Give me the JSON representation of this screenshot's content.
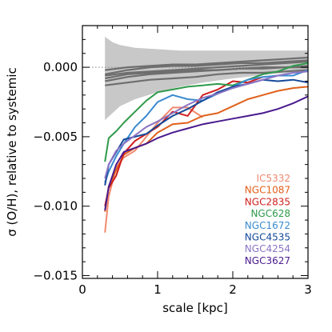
{
  "chart_data": {
    "type": "line",
    "title": "",
    "xlabel": "scale [kpc]",
    "ylabel": "σ (O/H), relative to systemic",
    "xlim": [
      0,
      3
    ],
    "ylim": [
      -0.0152,
      0.003
    ],
    "x_ticks": [
      0,
      1,
      2,
      3
    ],
    "x_tick_labels": [
      "0",
      "1",
      "2",
      "3"
    ],
    "y_ticks": [
      0.0,
      -0.005,
      -0.01,
      -0.015
    ],
    "y_tick_labels": [
      "0.000",
      "−0.005",
      "−0.010",
      "−0.015"
    ],
    "grid": false,
    "legend_position": "bottom-right",
    "zero_line": {
      "y": 0,
      "style": "dotted",
      "color": "#888888"
    },
    "band": {
      "color": "#c8c8c8",
      "x": [
        0.3,
        0.4,
        0.5,
        0.7,
        1.0,
        1.3,
        1.6,
        2.0,
        2.5,
        3.0
      ],
      "upper": [
        0.0022,
        0.0018,
        0.0016,
        0.0014,
        0.0013,
        0.0012,
        0.0012,
        0.0012,
        0.0012,
        0.0012
      ],
      "lower": [
        -0.0038,
        -0.0033,
        -0.0028,
        -0.0023,
        -0.0018,
        -0.0014,
        -0.0011,
        -0.0008,
        -0.0005,
        -0.0003
      ]
    },
    "null_series_color": "#6e6e6e",
    "null_series": [
      {
        "x": [
          0.3,
          0.6,
          0.9,
          1.2,
          1.5,
          1.8,
          2.1,
          2.4,
          2.7,
          3.0
        ],
        "values": [
          -0.0002,
          0.0,
          0.0001,
          0.0002,
          0.0002,
          0.0003,
          0.0004,
          0.0005,
          0.0006,
          0.0007
        ]
      },
      {
        "x": [
          0.3,
          0.6,
          0.9,
          1.2,
          1.5,
          1.8,
          2.1,
          2.4,
          2.7,
          3.0
        ],
        "values": [
          -0.0006,
          -0.0004,
          -0.0003,
          -0.0002,
          -0.0001,
          0.0,
          0.0001,
          0.0002,
          0.0003,
          0.0004
        ]
      },
      {
        "x": [
          0.3,
          0.6,
          0.9,
          1.2,
          1.5,
          1.8,
          2.1,
          2.4,
          2.7,
          3.0
        ],
        "values": [
          -0.001,
          -0.0007,
          -0.0005,
          -0.0004,
          -0.0003,
          -0.0002,
          -0.0001,
          0.0,
          0.0,
          0.0001
        ]
      },
      {
        "x": [
          0.3,
          0.6,
          0.9,
          1.2,
          1.5,
          1.8,
          2.1,
          2.4,
          2.7,
          3.0
        ],
        "values": [
          -0.0013,
          -0.0011,
          -0.0009,
          -0.0008,
          -0.0007,
          -0.0005,
          -0.0004,
          -0.0004,
          -0.0003,
          -0.0002
        ]
      },
      {
        "x": [
          0.3,
          0.6,
          0.9,
          1.2,
          1.5,
          1.8,
          2.1,
          2.4,
          2.7,
          3.0
        ],
        "values": [
          -0.0005,
          -0.0002,
          0.0,
          0.0001,
          0.0001,
          0.0002,
          0.0003,
          0.0003,
          0.0004,
          0.0005
        ]
      },
      {
        "x": [
          0.3,
          0.6,
          0.9,
          1.2,
          1.5,
          1.8,
          2.1,
          2.4,
          2.7,
          3.0
        ],
        "values": [
          -0.0008,
          -0.0005,
          -0.0004,
          -0.0003,
          -0.0002,
          -0.0002,
          -0.0001,
          -0.0001,
          0.0,
          0.0
        ]
      }
    ],
    "series": [
      {
        "name": "IC5332",
        "color": "#f08a6e",
        "x": [
          0.3,
          0.35,
          0.45,
          0.55,
          0.7,
          0.85,
          1.0,
          1.2,
          1.4,
          1.6
        ],
        "values": [
          -0.0119,
          -0.0093,
          -0.0072,
          -0.0065,
          -0.006,
          -0.005,
          -0.004,
          -0.0029,
          -0.0029,
          -0.0036
        ]
      },
      {
        "name": "NGC1087",
        "color": "#e0601a",
        "x": [
          0.3,
          0.35,
          0.45,
          0.55,
          0.7,
          0.85,
          1.0,
          1.2,
          1.4,
          1.6,
          1.8,
          2.0,
          2.2,
          2.4,
          2.6,
          2.8,
          3.0
        ],
        "values": [
          -0.0104,
          -0.0086,
          -0.0074,
          -0.0063,
          -0.0058,
          -0.0055,
          -0.0047,
          -0.0041,
          -0.004,
          -0.0035,
          -0.0033,
          -0.0028,
          -0.0023,
          -0.002,
          -0.0017,
          -0.0015,
          -0.0014
        ]
      },
      {
        "name": "NGC2835",
        "color": "#d0201e",
        "x": [
          0.3,
          0.35,
          0.45,
          0.55,
          0.7,
          0.85,
          1.0,
          1.2,
          1.4,
          1.6,
          1.8,
          2.0,
          2.2,
          2.4
        ],
        "values": [
          -0.01,
          -0.0087,
          -0.0078,
          -0.0062,
          -0.0053,
          -0.0048,
          -0.0043,
          -0.0032,
          -0.0035,
          -0.002,
          -0.0016,
          -0.001,
          -0.0011,
          -0.0007
        ]
      },
      {
        "name": "NGC628",
        "color": "#2e9a4a",
        "x": [
          0.3,
          0.35,
          0.45,
          0.55,
          0.7,
          0.85,
          1.0,
          1.2,
          1.4,
          1.6,
          1.8,
          2.0,
          2.2,
          2.4,
          2.6,
          2.8,
          3.0
        ],
        "values": [
          -0.0068,
          -0.0051,
          -0.0046,
          -0.004,
          -0.0032,
          -0.0024,
          -0.0018,
          -0.0016,
          -0.0014,
          -0.0013,
          -0.0012,
          -0.0013,
          -0.0009,
          -0.0005,
          -0.0003,
          0.0001,
          0.0003
        ]
      },
      {
        "name": "NGC1672",
        "color": "#3a8ad0",
        "x": [
          0.3,
          0.35,
          0.45,
          0.55,
          0.7,
          0.85,
          1.0,
          1.2,
          1.4,
          1.6,
          1.8,
          2.0,
          2.2,
          2.4,
          2.6,
          2.8,
          3.0
        ],
        "values": [
          -0.0083,
          -0.0075,
          -0.0064,
          -0.0055,
          -0.0043,
          -0.0035,
          -0.0025,
          -0.002,
          -0.0023,
          -0.0024,
          -0.0019,
          -0.0014,
          -0.0009,
          -0.0007,
          -0.0006,
          -0.0006,
          -0.0002
        ]
      },
      {
        "name": "NGC4535",
        "color": "#154a9a",
        "x": [
          0.3,
          0.35,
          0.45,
          0.55,
          0.7,
          0.85,
          1.0,
          1.2,
          1.4,
          1.6,
          1.8,
          2.0,
          2.2,
          2.4,
          2.6,
          2.8,
          3.0
        ],
        "values": [
          -0.0085,
          -0.007,
          -0.0061,
          -0.0052,
          -0.005,
          -0.0048,
          -0.0042,
          -0.0035,
          -0.003,
          -0.0024,
          -0.0018,
          -0.0014,
          -0.0012,
          -0.0009,
          -0.001,
          -0.0009,
          -0.0011
        ]
      },
      {
        "name": "NGC4254",
        "color": "#8a74c4",
        "x": [
          0.3,
          0.35,
          0.45,
          0.55,
          0.7,
          0.85,
          1.0,
          1.2,
          1.4,
          1.6,
          1.8,
          2.0,
          2.2,
          2.4,
          2.6,
          2.8,
          3.0
        ],
        "values": [
          -0.008,
          -0.007,
          -0.006,
          -0.0055,
          -0.0049,
          -0.0043,
          -0.0039,
          -0.0033,
          -0.0027,
          -0.0022,
          -0.0019,
          -0.0015,
          -0.0012,
          -0.0009,
          -0.0006,
          -0.0004,
          -0.0003
        ]
      },
      {
        "name": "NGC3627",
        "color": "#4a1a8e",
        "x": [
          0.3,
          0.35,
          0.45,
          0.55,
          0.7,
          0.85,
          1.0,
          1.2,
          1.4,
          1.6,
          1.8,
          2.0,
          2.2,
          2.4,
          2.6,
          2.8,
          3.0
        ],
        "values": [
          -0.0103,
          -0.0086,
          -0.007,
          -0.0061,
          -0.0058,
          -0.0055,
          -0.0051,
          -0.0047,
          -0.0044,
          -0.0041,
          -0.0039,
          -0.0037,
          -0.0035,
          -0.0033,
          -0.003,
          -0.0026,
          -0.0021
        ]
      }
    ]
  }
}
